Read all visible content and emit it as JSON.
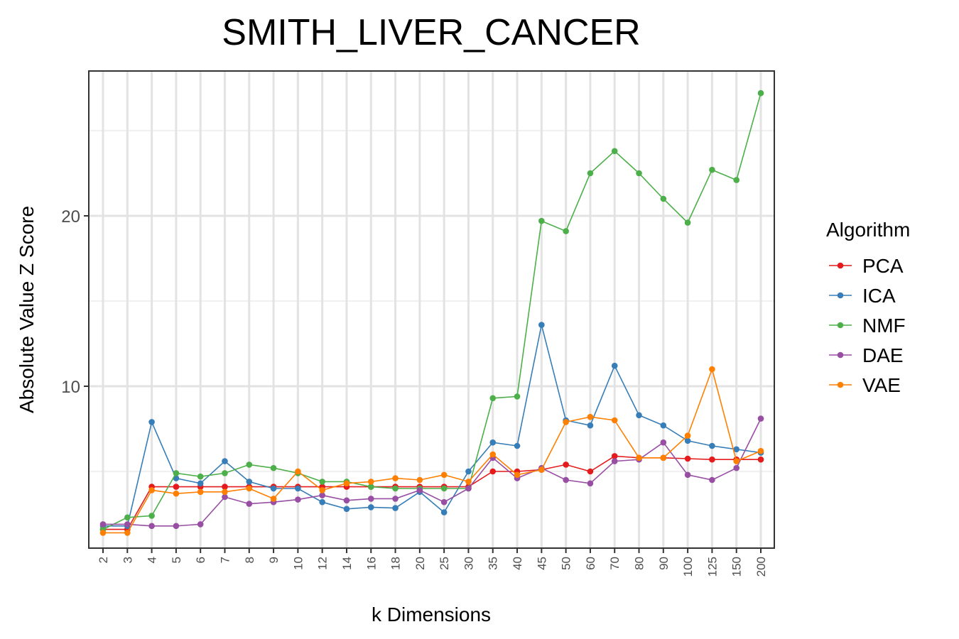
{
  "chart_data": {
    "type": "line",
    "title": "SMITH_LIVER_CANCER",
    "xlabel": "k Dimensions",
    "ylabel": "Absolute Value Z Score",
    "x": [
      "2",
      "3",
      "4",
      "5",
      "6",
      "7",
      "8",
      "9",
      "10",
      "12",
      "14",
      "16",
      "18",
      "20",
      "25",
      "30",
      "35",
      "40",
      "45",
      "50",
      "60",
      "70",
      "80",
      "90",
      "100",
      "125",
      "150",
      "200"
    ],
    "ylim": [
      0.5,
      28.5
    ],
    "yticks": [
      10,
      20
    ],
    "y_tick_labels": [
      "10",
      "20"
    ],
    "grid": true,
    "legend": {
      "title": "Algorithm",
      "position": "right"
    },
    "series": [
      {
        "name": "PCA",
        "color": "#e41a1c",
        "values": [
          1.6,
          1.6,
          4.1,
          4.1,
          4.1,
          4.1,
          4.1,
          4.1,
          4.1,
          4.1,
          4.1,
          4.1,
          4.1,
          4.1,
          4.1,
          4.1,
          5.0,
          5.0,
          5.1,
          5.4,
          5.0,
          5.9,
          5.8,
          5.8,
          5.75,
          5.7,
          5.7,
          5.7
        ]
      },
      {
        "name": "ICA",
        "color": "#377eb8",
        "values": [
          1.8,
          1.8,
          7.9,
          4.6,
          4.3,
          5.6,
          4.4,
          4.0,
          4.0,
          3.2,
          2.8,
          2.9,
          2.85,
          3.8,
          2.6,
          5.0,
          6.7,
          6.5,
          13.6,
          8.0,
          7.7,
          11.2,
          8.3,
          7.7,
          6.8,
          6.5,
          6.3,
          6.1
        ]
      },
      {
        "name": "NMF",
        "color": "#4daf4a",
        "values": [
          1.6,
          2.3,
          2.4,
          4.9,
          4.7,
          4.9,
          5.4,
          5.2,
          4.9,
          4.4,
          4.4,
          4.1,
          4.0,
          4.0,
          4.0,
          4.0,
          9.3,
          9.4,
          19.7,
          19.1,
          22.5,
          23.8,
          22.5,
          21.0,
          19.6,
          22.7,
          22.1,
          27.2
        ]
      },
      {
        "name": "DAE",
        "color": "#984ea3",
        "values": [
          1.9,
          1.9,
          1.8,
          1.8,
          1.9,
          3.5,
          3.1,
          3.2,
          3.35,
          3.6,
          3.3,
          3.4,
          3.4,
          3.9,
          3.2,
          4.0,
          5.8,
          4.6,
          5.2,
          4.5,
          4.3,
          5.6,
          5.7,
          6.7,
          4.8,
          4.5,
          5.2,
          8.1
        ]
      },
      {
        "name": "VAE",
        "color": "#ff7f00",
        "values": [
          1.4,
          1.4,
          3.9,
          3.7,
          3.8,
          3.8,
          4.0,
          3.4,
          5.0,
          3.9,
          4.3,
          4.4,
          4.6,
          4.5,
          4.8,
          4.4,
          6.0,
          4.8,
          5.1,
          7.9,
          8.2,
          8.0,
          5.8,
          5.8,
          7.1,
          11.0,
          5.6,
          6.2
        ]
      }
    ]
  }
}
